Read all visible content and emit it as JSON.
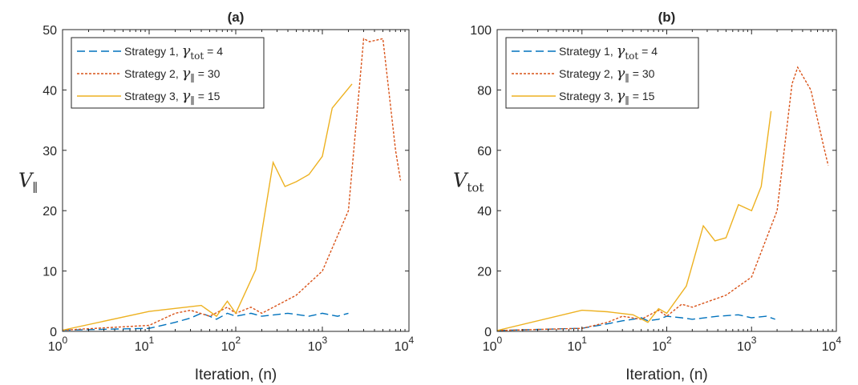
{
  "chart_data": [
    {
      "type": "line",
      "title": "(a)",
      "xlabel": "Iteration, (n)",
      "ylabel": "V_∥",
      "ylabel_main": "V",
      "ylabel_sub": "∥",
      "xscale": "log",
      "xlim": [
        1,
        10000
      ],
      "ylim": [
        0,
        50
      ],
      "yticks": [
        "0",
        "10",
        "20",
        "30",
        "40",
        "50"
      ],
      "xticks": [
        {
          "base": "10",
          "exp": "0"
        },
        {
          "base": "10",
          "exp": "1"
        },
        {
          "base": "10",
          "exp": "2"
        },
        {
          "base": "10",
          "exp": "3"
        },
        {
          "base": "10",
          "exp": "4"
        }
      ],
      "grid": false,
      "legend_position": "top-left",
      "series": [
        {
          "name": "Strategy 1,  γtot = 4",
          "label_pre": "Strategy 1,  ",
          "label_sym": "γ",
          "label_sub": "tot",
          "label_post": " = 4",
          "color": "#0072BD",
          "dash": "10,5",
          "x": [
            1,
            10,
            20,
            30,
            40,
            50,
            60,
            80,
            100,
            150,
            200,
            400,
            700,
            1000,
            1500,
            2000
          ],
          "y": [
            0.2,
            0.5,
            1.5,
            2.2,
            3.0,
            2.5,
            2.0,
            3.0,
            2.5,
            3.0,
            2.5,
            3.0,
            2.5,
            3.0,
            2.5,
            3.0
          ]
        },
        {
          "name": "Strategy 2,   γ∥ = 30",
          "label_pre": "Strategy 2,   ",
          "label_sym": "γ",
          "label_sub": "∥",
          "label_post": " = 30",
          "color": "#D95319",
          "dash": "3,2",
          "x": [
            1,
            10,
            20,
            30,
            50,
            80,
            100,
            150,
            200,
            500,
            1000,
            2000,
            3000,
            3500,
            5000,
            7000,
            8000
          ],
          "y": [
            0.2,
            1.0,
            3.0,
            3.5,
            2.5,
            4.0,
            3.0,
            4.0,
            3.0,
            6.0,
            10.0,
            20.0,
            48.5,
            48.0,
            48.5,
            30.0,
            25.0
          ]
        },
        {
          "name": "Strategy 3,   γ∥ = 15",
          "label_pre": "Strategy 3,   ",
          "label_sym": "γ",
          "label_sub": "∥",
          "label_post": " = 15",
          "color": "#EDB120",
          "dash": "",
          "x": [
            1,
            10,
            20,
            40,
            60,
            80,
            100,
            170,
            270,
            370,
            500,
            700,
            1000,
            1300,
            2200
          ],
          "y": [
            0.2,
            3.3,
            3.8,
            4.3,
            2.5,
            5.0,
            3.0,
            10.2,
            28.0,
            24.0,
            24.8,
            26.0,
            29.0,
            37.0,
            41.0
          ]
        }
      ]
    },
    {
      "type": "line",
      "title": "(b)",
      "xlabel": "Iteration, (n)",
      "ylabel": "V_tot",
      "ylabel_main": "V",
      "ylabel_sub": "tot",
      "xscale": "log",
      "xlim": [
        1,
        10000
      ],
      "ylim": [
        0,
        100
      ],
      "yticks": [
        "0",
        "20",
        "40",
        "60",
        "80",
        "100"
      ],
      "xticks": [
        {
          "base": "10",
          "exp": "0"
        },
        {
          "base": "10",
          "exp": "1"
        },
        {
          "base": "10",
          "exp": "2"
        },
        {
          "base": "10",
          "exp": "3"
        },
        {
          "base": "10",
          "exp": "4"
        }
      ],
      "grid": false,
      "legend_position": "top-left",
      "series": [
        {
          "name": "Strategy 1,  γtot = 4",
          "label_pre": "Strategy 1,  ",
          "label_sym": "γ",
          "label_sub": "tot",
          "label_post": " = 4",
          "color": "#0072BD",
          "dash": "10,5",
          "x": [
            1,
            10,
            20,
            30,
            40,
            50,
            60,
            80,
            100,
            150,
            200,
            400,
            700,
            1000,
            1500,
            1900
          ],
          "y": [
            0.3,
            1.0,
            2.5,
            3.5,
            4.0,
            4.5,
            3.5,
            4.0,
            5.0,
            4.5,
            4.0,
            5.0,
            5.5,
            4.5,
            5.0,
            4.0
          ]
        },
        {
          "name": "Strategy 2,   γ∥ = 30",
          "label_pre": "Strategy 2,   ",
          "label_sym": "γ",
          "label_sub": "∥",
          "label_post": " = 30",
          "color": "#D95319",
          "dash": "3,2",
          "x": [
            1,
            10,
            20,
            30,
            50,
            80,
            100,
            150,
            200,
            500,
            1000,
            2000,
            3000,
            3500,
            5000,
            7000,
            8000
          ],
          "y": [
            0.3,
            1.0,
            3.0,
            5.0,
            4.0,
            7.0,
            5.0,
            9.0,
            8.0,
            12.0,
            18.0,
            40.0,
            82.0,
            87.5,
            80.0,
            62.0,
            55.0
          ]
        },
        {
          "name": "Strategy 3,   γ∥ = 15",
          "label_pre": "Strategy 3,   ",
          "label_sym": "γ",
          "label_sub": "∥",
          "label_post": " = 15",
          "color": "#EDB120",
          "dash": "",
          "x": [
            1,
            10,
            20,
            40,
            60,
            80,
            100,
            170,
            270,
            370,
            500,
            700,
            1000,
            1300,
            1700
          ],
          "y": [
            0.3,
            7.0,
            6.5,
            5.5,
            3.0,
            7.5,
            6.0,
            15.0,
            35.0,
            30.0,
            31.0,
            42.0,
            40.0,
            48.0,
            73.0
          ]
        }
      ]
    }
  ]
}
